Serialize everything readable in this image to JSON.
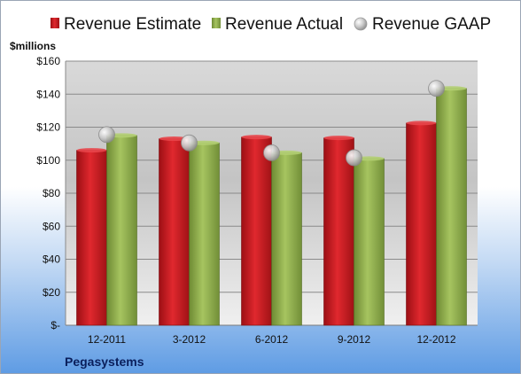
{
  "chart_data": {
    "type": "bar",
    "company": "Pegasystems",
    "unit_label": "$millions",
    "categories": [
      "12-2011",
      "3-2012",
      "6-2012",
      "9-2012",
      "12-2012"
    ],
    "series": [
      {
        "name": "Revenue Estimate",
        "kind": "bar",
        "color": "#c8161d",
        "values": [
          106,
          113,
          114,
          113.5,
          122.5
        ]
      },
      {
        "name": "Revenue Actual",
        "kind": "bar",
        "color": "#8fb04b",
        "values": [
          115,
          110.5,
          104.5,
          101,
          143.5
        ]
      },
      {
        "name": "Revenue GAAP",
        "kind": "marker",
        "color": "#bfbfbf",
        "values": [
          115.5,
          110.5,
          104.5,
          101.5,
          143.5
        ]
      }
    ],
    "ylim": [
      0,
      160
    ],
    "y_ticks": [
      {
        "value": 0,
        "label": "$-"
      },
      {
        "value": 20,
        "label": "$20"
      },
      {
        "value": 40,
        "label": "$40"
      },
      {
        "value": 60,
        "label": "$60"
      },
      {
        "value": 80,
        "label": "$80"
      },
      {
        "value": 100,
        "label": "$100"
      },
      {
        "value": 120,
        "label": "$120"
      },
      {
        "value": 140,
        "label": "$140"
      },
      {
        "value": 160,
        "label": "$160"
      }
    ],
    "grid": true,
    "legend_position": "top"
  }
}
